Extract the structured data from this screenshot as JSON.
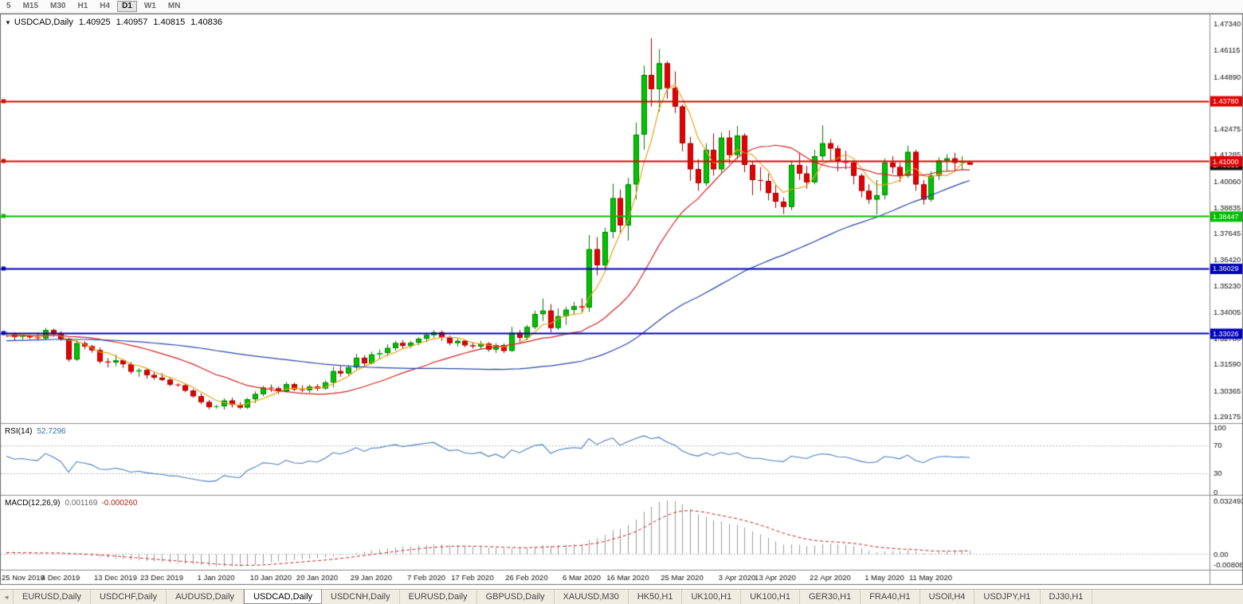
{
  "toolbar": {
    "timeframes": [
      {
        "label": "5",
        "active": false
      },
      {
        "label": "M15",
        "active": false
      },
      {
        "label": "M30",
        "active": false
      },
      {
        "label": "H1",
        "active": false
      },
      {
        "label": "H4",
        "active": false
      },
      {
        "label": "D1",
        "active": true
      },
      {
        "label": "W1",
        "active": false
      },
      {
        "label": "MN",
        "active": false
      }
    ]
  },
  "chart_header": {
    "arrow": "▼",
    "symbol": "USDCAD,Daily",
    "open": "1.40925",
    "high": "1.40957",
    "low": "1.40815",
    "close": "1.40836"
  },
  "price_axis": {
    "ticks": [
      "1.47340",
      "1.46115",
      "1.44890",
      "1.43700",
      "1.42475",
      "1.41285",
      "1.40060",
      "1.38835",
      "1.37645",
      "1.36420",
      "1.35230",
      "1.34005",
      "1.32780",
      "1.31590",
      "1.30365",
      "1.29175"
    ]
  },
  "hlines": [
    {
      "price": 1.4378,
      "label": "1.43780",
      "color": "#e00000",
      "width": 2
    },
    {
      "price": 1.41,
      "label": "1.41000",
      "color": "#e00000",
      "width": 2
    },
    {
      "price": 1.38447,
      "label": "1.38447",
      "color": "#00be00",
      "width": 2
    },
    {
      "price": 1.36029,
      "label": "1.36029",
      "color": "#0000be",
      "width": 2
    },
    {
      "price": 1.33026,
      "label": "1.33026",
      "color": "#0000be",
      "width": 2
    }
  ],
  "bid_badge": {
    "label": "1.40836",
    "price": 1.40836,
    "color": "#111111"
  },
  "indicators": {
    "moving_averages": [
      {
        "period": 5,
        "color": "#e8a21c"
      },
      {
        "period": 20,
        "color": "#d42121"
      },
      {
        "period": 55,
        "color": "#2946a8"
      }
    ],
    "rsi": {
      "name": "RSI(14)",
      "value": "52.7296",
      "period": 14,
      "color": "#4a7ebb",
      "levels": [
        {
          "value": 100,
          "label": "100"
        },
        {
          "value": 70,
          "label": "70"
        },
        {
          "value": 30,
          "label": "30"
        },
        {
          "value": 0,
          "label": "0"
        }
      ]
    },
    "macd": {
      "name": "MACD(12,26,9)",
      "value": "0.001169",
      "signal_value": "-0.000260",
      "fast": 12,
      "slow": 26,
      "signal_period": 9,
      "hist_color": "#9c9c9c",
      "signal_color": "#cc2222",
      "axis_top": "0.032493",
      "axis_zero": "0.00",
      "axis_bottom": "-0.00808"
    }
  },
  "chart_data": {
    "type": "candlestick",
    "title": "USDCAD,Daily",
    "ylim": [
      1.2895,
      1.476
    ],
    "x_ticks": [
      {
        "date": "2019.11.25",
        "label": "25 Nov 2019"
      },
      {
        "date": "2019.12.04",
        "label": "4 Dec 2019"
      },
      {
        "date": "2019.12.13",
        "label": "13 Dec 2019"
      },
      {
        "date": "2019.12.23",
        "label": "23 Dec 2019"
      },
      {
        "date": "2020.01.01",
        "label": "1 Jan 2020"
      },
      {
        "date": "2020.01.10",
        "label": "10 Jan 2020"
      },
      {
        "date": "2020.01.20",
        "label": "20 Jan 2020"
      },
      {
        "date": "2020.01.29",
        "label": "29 Jan 2020"
      },
      {
        "date": "2020.02.07",
        "label": "7 Feb 2020"
      },
      {
        "date": "2020.02.17",
        "label": "17 Feb 2020"
      },
      {
        "date": "2020.02.26",
        "label": "26 Feb 2020"
      },
      {
        "date": "2020.03.06",
        "label": "6 Mar 2020"
      },
      {
        "date": "2020.03.16",
        "label": "16 Mar 2020"
      },
      {
        "date": "2020.03.25",
        "label": "25 Mar 2020"
      },
      {
        "date": "2020.04.03",
        "label": "3 Apr 2020"
      },
      {
        "date": "2020.04.13",
        "label": "13 Apr 2020"
      },
      {
        "date": "2020.04.22",
        "label": "22 Apr 2020"
      },
      {
        "date": "2020.05.01",
        "label": "1 May 2020"
      },
      {
        "date": "2020.05.11",
        "label": "11 May 2020"
      }
    ],
    "candles": [
      [
        "2019.11.25",
        1.3299,
        1.3311,
        1.3285,
        1.3302
      ],
      [
        "2019.11.26",
        1.3302,
        1.3308,
        1.3271,
        1.3287
      ],
      [
        "2019.11.27",
        1.3287,
        1.3296,
        1.3273,
        1.329
      ],
      [
        "2019.11.28",
        1.329,
        1.3294,
        1.3277,
        1.3284
      ],
      [
        "2019.11.29",
        1.3284,
        1.3306,
        1.3274,
        1.328
      ],
      [
        "2019.12.02",
        1.328,
        1.3328,
        1.3272,
        1.3318
      ],
      [
        "2019.12.03",
        1.3318,
        1.3325,
        1.3287,
        1.33
      ],
      [
        "2019.12.04",
        1.33,
        1.3312,
        1.3269,
        1.3277
      ],
      [
        "2019.12.05",
        1.3277,
        1.3282,
        1.3172,
        1.3182
      ],
      [
        "2019.12.06",
        1.3182,
        1.3271,
        1.3175,
        1.3257
      ],
      [
        "2019.12.09",
        1.3257,
        1.3266,
        1.323,
        1.3243
      ],
      [
        "2019.12.10",
        1.3243,
        1.325,
        1.3213,
        1.3225
      ],
      [
        "2019.12.11",
        1.3225,
        1.3237,
        1.3163,
        1.3173
      ],
      [
        "2019.12.12",
        1.3173,
        1.3188,
        1.3145,
        1.3168
      ],
      [
        "2019.12.13",
        1.3168,
        1.3204,
        1.3151,
        1.3178
      ],
      [
        "2019.12.16",
        1.3178,
        1.3184,
        1.3143,
        1.316
      ],
      [
        "2019.12.17",
        1.316,
        1.317,
        1.3114,
        1.3126
      ],
      [
        "2019.12.18",
        1.3126,
        1.3141,
        1.3102,
        1.3133
      ],
      [
        "2019.12.19",
        1.3133,
        1.3139,
        1.3093,
        1.311
      ],
      [
        "2019.12.20",
        1.311,
        1.3125,
        1.3088,
        1.3098
      ],
      [
        "2019.12.23",
        1.3098,
        1.3119,
        1.3081,
        1.3088
      ],
      [
        "2019.12.24",
        1.3088,
        1.3096,
        1.3058,
        1.3066
      ],
      [
        "2019.12.25",
        1.3066,
        1.3072,
        1.3056,
        1.3062
      ],
      [
        "2019.12.26",
        1.3062,
        1.307,
        1.303,
        1.3038
      ],
      [
        "2019.12.27",
        1.3038,
        1.3045,
        1.3005,
        1.3012
      ],
      [
        "2019.12.30",
        1.3012,
        1.3025,
        1.2975,
        1.2985
      ],
      [
        "2019.12.31",
        1.2985,
        1.2995,
        1.2952,
        1.2962
      ],
      [
        "2020.01.01",
        1.2962,
        1.2972,
        1.2955,
        1.2966
      ],
      [
        "2020.01.02",
        1.2966,
        1.3002,
        1.295,
        1.2992
      ],
      [
        "2020.01.03",
        1.2992,
        1.3005,
        1.296,
        1.2972
      ],
      [
        "2020.01.06",
        1.2972,
        1.2985,
        1.2952,
        1.296
      ],
      [
        "2020.01.07",
        1.296,
        1.3004,
        1.2954,
        1.2998
      ],
      [
        "2020.01.08",
        1.2998,
        1.3035,
        1.298,
        1.3022
      ],
      [
        "2020.01.09",
        1.3022,
        1.306,
        1.3012,
        1.3052
      ],
      [
        "2020.01.10",
        1.3052,
        1.3066,
        1.3032,
        1.3048
      ],
      [
        "2020.01.13",
        1.3048,
        1.3057,
        1.3022,
        1.3035
      ],
      [
        "2020.01.14",
        1.3035,
        1.3078,
        1.3028,
        1.3068
      ],
      [
        "2020.01.15",
        1.3068,
        1.3075,
        1.3035,
        1.3044
      ],
      [
        "2020.01.16",
        1.3044,
        1.3062,
        1.303,
        1.304
      ],
      [
        "2020.01.17",
        1.304,
        1.3066,
        1.3028,
        1.3057
      ],
      [
        "2020.01.20",
        1.3057,
        1.3068,
        1.3036,
        1.3048
      ],
      [
        "2020.01.21",
        1.3048,
        1.3085,
        1.3042,
        1.3076
      ],
      [
        "2020.01.22",
        1.3076,
        1.3148,
        1.3052,
        1.3128
      ],
      [
        "2020.01.23",
        1.3128,
        1.3152,
        1.3102,
        1.3118
      ],
      [
        "2020.01.24",
        1.3118,
        1.3155,
        1.3108,
        1.3145
      ],
      [
        "2020.01.27",
        1.3145,
        1.3208,
        1.3138,
        1.319
      ],
      [
        "2020.01.28",
        1.319,
        1.3202,
        1.3152,
        1.3164
      ],
      [
        "2020.01.29",
        1.3164,
        1.3218,
        1.3158,
        1.3205
      ],
      [
        "2020.01.30",
        1.3205,
        1.3228,
        1.3183,
        1.3212
      ],
      [
        "2020.01.31",
        1.3212,
        1.3252,
        1.3198,
        1.3235
      ],
      [
        "2020.02.03",
        1.3235,
        1.3268,
        1.3222,
        1.3258
      ],
      [
        "2020.02.04",
        1.3258,
        1.3272,
        1.3232,
        1.3245
      ],
      [
        "2020.02.05",
        1.3245,
        1.3268,
        1.3235,
        1.326
      ],
      [
        "2020.02.06",
        1.326,
        1.3285,
        1.3248,
        1.3278
      ],
      [
        "2020.02.07",
        1.3278,
        1.3305,
        1.3262,
        1.3295
      ],
      [
        "2020.02.10",
        1.3295,
        1.3318,
        1.3282,
        1.3308
      ],
      [
        "2020.02.11",
        1.3308,
        1.3316,
        1.3268,
        1.3282
      ],
      [
        "2020.02.12",
        1.3282,
        1.3292,
        1.3248,
        1.3258
      ],
      [
        "2020.02.13",
        1.3258,
        1.3278,
        1.3242,
        1.3268
      ],
      [
        "2020.02.14",
        1.3268,
        1.3275,
        1.3238,
        1.3248
      ],
      [
        "2020.02.17",
        1.3248,
        1.3262,
        1.3232,
        1.3242
      ],
      [
        "2020.02.18",
        1.3242,
        1.3268,
        1.3228,
        1.3255
      ],
      [
        "2020.02.19",
        1.3255,
        1.3262,
        1.3218,
        1.3228
      ],
      [
        "2020.02.20",
        1.3228,
        1.3258,
        1.3212,
        1.3248
      ],
      [
        "2020.02.21",
        1.3248,
        1.3256,
        1.3212,
        1.3222
      ],
      [
        "2020.02.24",
        1.3222,
        1.3333,
        1.3218,
        1.3305
      ],
      [
        "2020.02.25",
        1.3305,
        1.3318,
        1.3262,
        1.3282
      ],
      [
        "2020.02.26",
        1.3282,
        1.3342,
        1.327,
        1.3332
      ],
      [
        "2020.02.27",
        1.3332,
        1.3408,
        1.3322,
        1.3392
      ],
      [
        "2020.02.28",
        1.3392,
        1.3464,
        1.336,
        1.3408
      ],
      [
        "2020.03.02",
        1.3408,
        1.3438,
        1.3308,
        1.3328
      ],
      [
        "2020.03.03",
        1.3328,
        1.3418,
        1.3318,
        1.3382
      ],
      [
        "2020.03.04",
        1.3382,
        1.3425,
        1.3342,
        1.3412
      ],
      [
        "2020.03.05",
        1.3412,
        1.3448,
        1.3388,
        1.3428
      ],
      [
        "2020.03.06",
        1.3428,
        1.3465,
        1.3398,
        1.3422
      ],
      [
        "2020.03.09",
        1.3422,
        1.3758,
        1.3402,
        1.3692
      ],
      [
        "2020.03.10",
        1.3692,
        1.3748,
        1.3572,
        1.3618
      ],
      [
        "2020.03.11",
        1.3618,
        1.3792,
        1.3602,
        1.3772
      ],
      [
        "2020.03.12",
        1.3772,
        1.3995,
        1.3742,
        1.3928
      ],
      [
        "2020.03.13",
        1.3928,
        1.3968,
        1.3765,
        1.3802
      ],
      [
        "2020.03.16",
        1.3802,
        1.4022,
        1.3732,
        1.3992
      ],
      [
        "2020.03.17",
        1.3992,
        1.4278,
        1.3922,
        1.4222
      ],
      [
        "2020.03.18",
        1.4222,
        1.4542,
        1.4152,
        1.4498
      ],
      [
        "2020.03.19",
        1.4498,
        1.4668,
        1.4352,
        1.4432
      ],
      [
        "2020.03.20",
        1.4432,
        1.4618,
        1.4328,
        1.4552
      ],
      [
        "2020.03.23",
        1.4552,
        1.4562,
        1.4388,
        1.4438
      ],
      [
        "2020.03.24",
        1.4438,
        1.4514,
        1.4322,
        1.4352
      ],
      [
        "2020.03.25",
        1.4352,
        1.4362,
        1.4145,
        1.4182
      ],
      [
        "2020.03.26",
        1.4182,
        1.4212,
        1.4008,
        1.4062
      ],
      [
        "2020.03.27",
        1.4062,
        1.4108,
        1.3962,
        1.3998
      ],
      [
        "2020.03.30",
        1.3998,
        1.4182,
        1.3985,
        1.4152
      ],
      [
        "2020.03.31",
        1.4152,
        1.4228,
        1.4032,
        1.4062
      ],
      [
        "2020.04.01",
        1.4062,
        1.4232,
        1.4042,
        1.4208
      ],
      [
        "2020.04.02",
        1.4208,
        1.4242,
        1.4088,
        1.4128
      ],
      [
        "2020.04.03",
        1.4128,
        1.4262,
        1.4108,
        1.4218
      ],
      [
        "2020.04.06",
        1.4218,
        1.4228,
        1.4048,
        1.4082
      ],
      [
        "2020.04.07",
        1.4082,
        1.4098,
        1.3942,
        1.4012
      ],
      [
        "2020.04.08",
        1.4012,
        1.4072,
        1.3962,
        1.4008
      ],
      [
        "2020.04.09",
        1.4008,
        1.4042,
        1.3918,
        1.3952
      ],
      [
        "2020.04.13",
        1.3952,
        1.3988,
        1.3882,
        1.3912
      ],
      [
        "2020.04.14",
        1.3912,
        1.3932,
        1.3855,
        1.3888
      ],
      [
        "2020.04.15",
        1.3888,
        1.4102,
        1.3872,
        1.4082
      ],
      [
        "2020.04.16",
        1.4082,
        1.4138,
        1.4012,
        1.4042
      ],
      [
        "2020.04.17",
        1.4042,
        1.4078,
        1.3972,
        1.4002
      ],
      [
        "2020.04.20",
        1.4002,
        1.4152,
        1.3992,
        1.4122
      ],
      [
        "2020.04.21",
        1.4122,
        1.4265,
        1.4102,
        1.4182
      ],
      [
        "2020.04.22",
        1.4182,
        1.4202,
        1.4102,
        1.4158
      ],
      [
        "2020.04.23",
        1.4158,
        1.4172,
        1.4052,
        1.4098
      ],
      [
        "2020.04.24",
        1.4098,
        1.4148,
        1.4062,
        1.4092
      ],
      [
        "2020.04.27",
        1.4092,
        1.4102,
        1.3992,
        1.4032
      ],
      [
        "2020.04.28",
        1.4032,
        1.4042,
        1.3932,
        1.3962
      ],
      [
        "2020.04.29",
        1.3962,
        1.3992,
        1.3902,
        1.3922
      ],
      [
        "2020.04.30",
        1.3922,
        1.4012,
        1.3852,
        1.3942
      ],
      [
        "2020.05.01",
        1.3942,
        1.4112,
        1.3922,
        1.4092
      ],
      [
        "2020.05.04",
        1.4092,
        1.4122,
        1.4042,
        1.4072
      ],
      [
        "2020.05.05",
        1.4072,
        1.4092,
        1.4002,
        1.4032
      ],
      [
        "2020.05.06",
        1.4032,
        1.4172,
        1.4022,
        1.4142
      ],
      [
        "2020.05.07",
        1.4142,
        1.4152,
        1.3962,
        1.3992
      ],
      [
        "2020.05.08",
        1.3992,
        1.4012,
        1.3898,
        1.3922
      ],
      [
        "2020.05.11",
        1.3922,
        1.4052,
        1.3912,
        1.4032
      ],
      [
        "2020.05.12",
        1.4032,
        1.4118,
        1.4012,
        1.4102
      ],
      [
        "2020.05.13",
        1.4102,
        1.4132,
        1.4052,
        1.4112
      ],
      [
        "2020.05.14",
        1.4112,
        1.4138,
        1.4052,
        1.4092
      ],
      [
        "2020.05.15",
        1.4092,
        1.4122,
        1.4062,
        1.4098
      ],
      [
        "2020.05.18",
        1.40925,
        1.40957,
        1.40815,
        1.40836
      ]
    ]
  },
  "colors": {
    "bull": "#00c400",
    "bear": "#e60000",
    "wick_up": "#067a06",
    "wick_down": "#a00000",
    "axis_text": "#111111",
    "panel_border": "#8c8c8c",
    "level_dotted": "#b8b8b8"
  },
  "tab_scroll_icon": "◄",
  "tabs": [
    {
      "label": "EURUSD,Daily",
      "active": false
    },
    {
      "label": "USDCHF,Daily",
      "active": false
    },
    {
      "label": "AUDUSD,Daily",
      "active": false
    },
    {
      "label": "USDCAD,Daily",
      "active": true
    },
    {
      "label": "USDCNH,Daily",
      "active": false
    },
    {
      "label": "EURUSD,Daily",
      "active": false
    },
    {
      "label": "GBPUSD,Daily",
      "active": false
    },
    {
      "label": "XAUUSD,M30",
      "active": false
    },
    {
      "label": "HK50,H1",
      "active": false
    },
    {
      "label": "UK100,H1",
      "active": false
    },
    {
      "label": "UK100,H1",
      "active": false
    },
    {
      "label": "GER30,H1",
      "active": false
    },
    {
      "label": "FRA40,H1",
      "active": false
    },
    {
      "label": "USOil,H4",
      "active": false
    },
    {
      "label": "USDJPY,H1",
      "active": false
    },
    {
      "label": "DJ30,H1",
      "active": false
    }
  ]
}
